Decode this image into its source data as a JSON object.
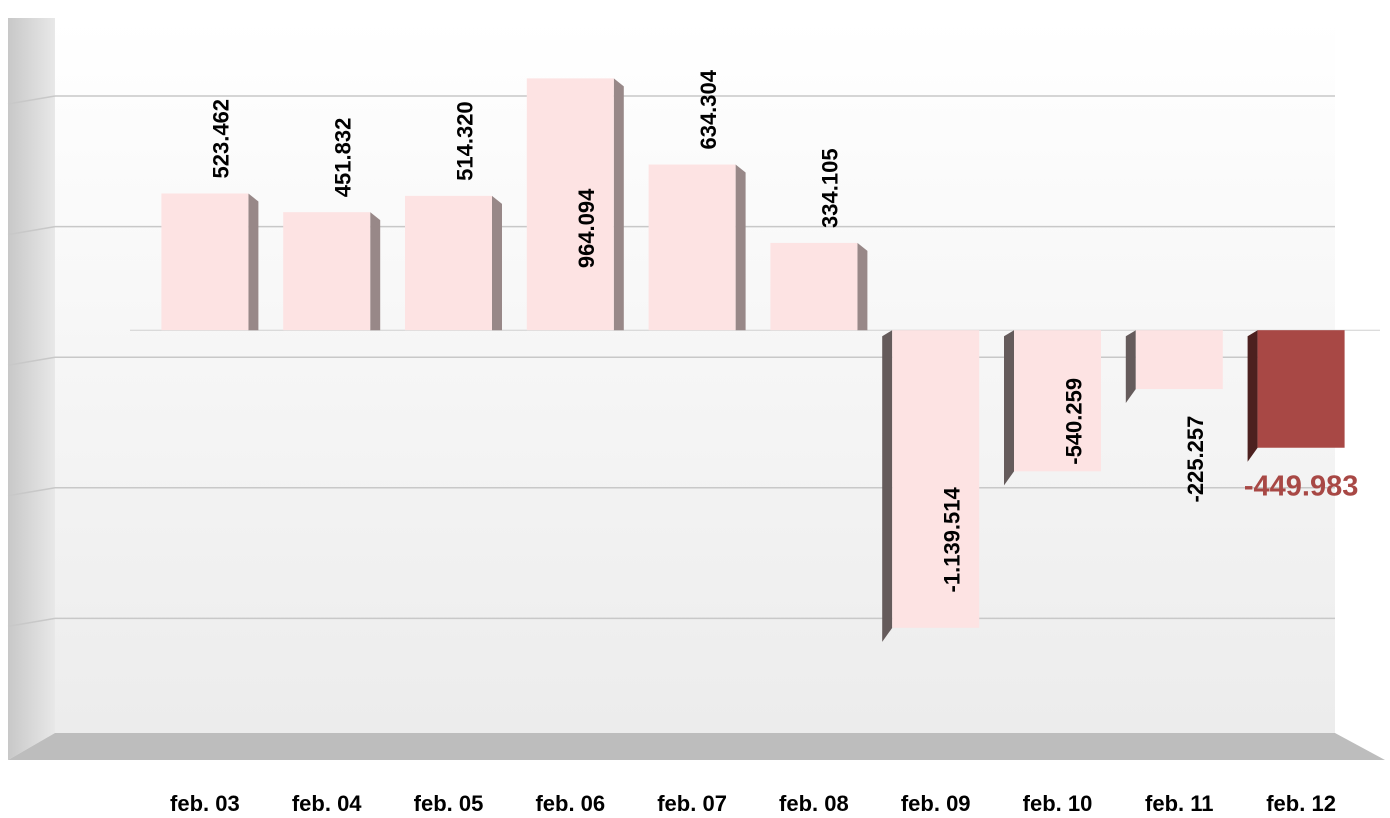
{
  "chart_data": {
    "type": "bar",
    "categories": [
      "feb. 03",
      "feb. 04",
      "feb. 05",
      "feb. 06",
      "feb. 07",
      "feb. 08",
      "feb. 09",
      "feb. 10",
      "feb. 11",
      "feb. 12"
    ],
    "values": [
      523462,
      451832,
      514320,
      964094,
      634304,
      334105,
      -1139514,
      -540259,
      -225257,
      -449983
    ],
    "value_labels": [
      "523.462",
      "451.832",
      "514.320",
      "964.094",
      "634.304",
      "334.105",
      "-1.139.514",
      "-540.259",
      "-225.257",
      "-449.983"
    ],
    "colors": [
      "#fde3e3",
      "#fde3e3",
      "#fde3e3",
      "#fde3e3",
      "#fde3e3",
      "#fde3e3",
      "#fde3e3",
      "#fde3e3",
      "#fde3e3",
      "#a84845"
    ],
    "ylim": [
      -1500000,
      1000000
    ],
    "yticks": [
      -1000000,
      -500000,
      0,
      500000,
      1000000
    ],
    "grid": true
  }
}
